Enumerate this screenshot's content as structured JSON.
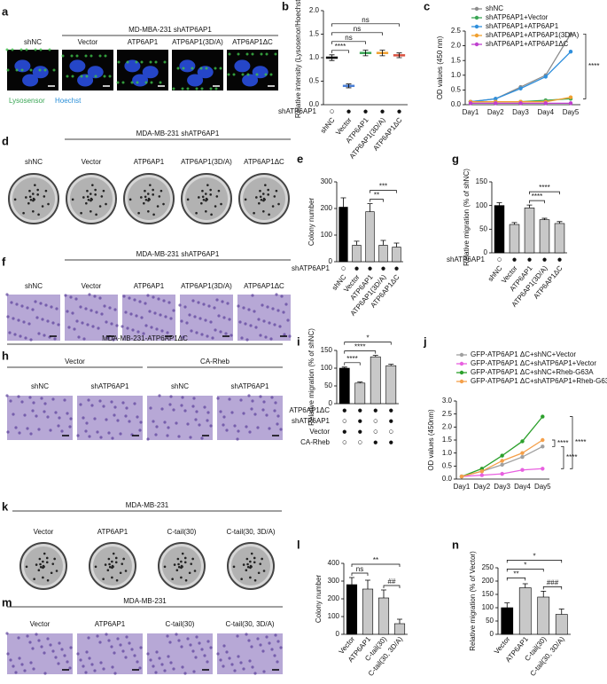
{
  "images": [
    {
      "panel": "a",
      "header": "MD-MBA-231 shATP6AP1",
      "labels": [
        "shNC",
        "Vector",
        "ATP6AP1",
        "ATP6AP1(3D/A)",
        "ATP6AP1ΔC"
      ],
      "legend": [
        "Lysosensor",
        "Hoechst"
      ]
    },
    {
      "panel": "d",
      "header": "MDA-MB-231 shATP6AP1",
      "labels": [
        "shNC",
        "Vector",
        "ATP6AP1",
        "ATP6AP1(3D/A)",
        "ATP6AP1ΔC"
      ]
    },
    {
      "panel": "f",
      "header": "MDA-MB-231 shATP6AP1",
      "labels": [
        "shNC",
        "Vector",
        "ATP6AP1",
        "ATP6AP1(3D/A)",
        "ATP6AP1ΔC"
      ]
    },
    {
      "panel": "h",
      "header": "MDA-MB-231-ATP6AP1ΔC",
      "groups": [
        "Vector",
        "CA-Rheb"
      ],
      "labels": [
        "shNC",
        "shATP6AP1",
        "shNC",
        "shATP6AP1"
      ]
    },
    {
      "panel": "k",
      "header": "MDA-MB-231",
      "labels": [
        "Vector",
        "ATP6AP1",
        "C-tail(30)",
        "C-tail(30, 3D/A)"
      ]
    },
    {
      "panel": "m",
      "header": "MDA-MB-231",
      "labels": [
        "Vector",
        "ATP6AP1",
        "C-tail(30)",
        "C-tail(30, 3D/A)"
      ]
    }
  ],
  "chart_data": [
    {
      "panel": "b",
      "type": "dot",
      "ylabel": "Relative intensity (Lysosenor/Hoechst)",
      "categories": [
        "shNC",
        "Vector",
        "ATP6AP1",
        "ATP6AP1(3D/A)",
        "ATP6AP1ΔC"
      ],
      "values": [
        1.0,
        0.4,
        1.1,
        1.1,
        1.05
      ],
      "errors": [
        0.06,
        0.04,
        0.06,
        0.06,
        0.05
      ],
      "colors": [
        "#000000",
        "#4a7fd6",
        "#3aa655",
        "#f0a030",
        "#d9503f"
      ],
      "ylim": [
        0,
        2
      ],
      "yticks": [
        {
          "value": 0,
          "label": "0.0"
        },
        0.5,
        {
          "value": 1,
          "label": "1.0"
        },
        1.5,
        {
          "value": 2,
          "label": "2.0"
        }
      ],
      "conditions": [
        {
          "label": "shATP6AP1",
          "marks": [
            "○",
            "●",
            "●",
            "●",
            "●"
          ]
        }
      ],
      "annotations": [
        {
          "text": "****",
          "from": 0,
          "to": 1
        },
        {
          "text": "ns",
          "from": 0,
          "to": 2
        },
        {
          "text": "ns",
          "from": 0,
          "to": 3
        },
        {
          "text": "ns",
          "from": 0,
          "to": 4
        }
      ]
    },
    {
      "panel": "c",
      "type": "line",
      "ylabel": "OD values (450 nm)",
      "categories": [
        "Day1",
        "Day2",
        "Day3",
        "Day4",
        "Day5"
      ],
      "series": [
        {
          "name": "shNC",
          "color": "#8c8c8c",
          "values": [
            0.1,
            0.2,
            0.6,
            1.0,
            2.4
          ]
        },
        {
          "name": "shATP6AP1+Vector",
          "color": "#3aa655",
          "values": [
            0.1,
            0.1,
            0.1,
            0.15,
            0.2
          ]
        },
        {
          "name": "shATP6AP1+ATP6AP1",
          "color": "#2f8fdc",
          "values": [
            0.1,
            0.2,
            0.55,
            0.95,
            1.8
          ]
        },
        {
          "name": "shATP6AP1+ATP6AP1(3D/A)",
          "color": "#f0a030",
          "values": [
            0.1,
            0.1,
            0.1,
            0.1,
            0.25
          ]
        },
        {
          "name": "shATP6AP1+ATP6AP1ΔC",
          "color": "#c040d0",
          "values": [
            0.05,
            0.05,
            0.05,
            0.05,
            0.05
          ]
        }
      ],
      "ylim": [
        0,
        2.5
      ],
      "yticks": [
        {
          "value": 0,
          "label": "0.0"
        },
        0.5,
        {
          "value": 1,
          "label": "1.0"
        },
        1.5,
        {
          "value": 2,
          "label": "2.0"
        },
        2.5
      ],
      "annotations": [
        {
          "text": "****",
          "from": 0,
          "to": 1
        }
      ]
    },
    {
      "panel": "e",
      "type": "bar",
      "ylabel": "Colony number",
      "values": [
        205,
        62,
        188,
        62,
        55
      ],
      "errors": [
        35,
        15,
        30,
        18,
        15
      ],
      "colors": [
        "#000000",
        "#c8c8c8",
        "#c8c8c8",
        "#c8c8c8",
        "#c8c8c8"
      ],
      "categories": [
        "shNC",
        "Vector",
        "ATP6AP1",
        "ATP6AP1(3D/A)",
        "ATP6AP1ΔC"
      ],
      "ylim": [
        0,
        300
      ],
      "yticks": [
        0,
        100,
        200,
        300
      ],
      "conditions": [
        {
          "label": "shATP6AP1",
          "marks": [
            "○",
            "●",
            "●",
            "●",
            "●"
          ]
        }
      ],
      "annotations": [
        {
          "text": "**",
          "from": 2,
          "to": 3
        },
        {
          "text": "***",
          "from": 2,
          "to": 4
        }
      ]
    },
    {
      "panel": "g",
      "type": "bar",
      "ylabel": "Relative migration (% of shNC)",
      "values": [
        100,
        60,
        95,
        70,
        62
      ],
      "errors": [
        6,
        4,
        6,
        3,
        4
      ],
      "colors": [
        "#000000",
        "#c8c8c8",
        "#c8c8c8",
        "#c8c8c8",
        "#c8c8c8"
      ],
      "categories": [
        "shNC",
        "Vector",
        "ATP6AP1",
        "ATP6AP1(3D/A)",
        "ATP6AP1ΔC"
      ],
      "ylim": [
        0,
        150
      ],
      "yticks": [
        0,
        50,
        100,
        150
      ],
      "conditions": [
        {
          "label": "shATP6AP1",
          "marks": [
            "○",
            "●",
            "●",
            "●",
            "●"
          ]
        }
      ],
      "annotations": [
        {
          "text": "****",
          "from": 2,
          "to": 3
        },
        {
          "text": "****",
          "from": 2,
          "to": 4
        }
      ]
    },
    {
      "panel": "i",
      "type": "bar",
      "ylabel": "Relative migration (% of shNC)",
      "values": [
        100,
        58,
        132,
        107
      ],
      "errors": [
        3,
        3,
        4,
        4
      ],
      "colors": [
        "#000000",
        "#c8c8c8",
        "#c8c8c8",
        "#c8c8c8"
      ],
      "ylim": [
        0,
        150
      ],
      "yticks": [
        0,
        50,
        100,
        150
      ],
      "conditions": [
        {
          "label": "ATP6AP1ΔC",
          "marks": [
            "●",
            "●",
            "●",
            "●"
          ]
        },
        {
          "label": "shATP6AP1",
          "marks": [
            "○",
            "●",
            "○",
            "●"
          ]
        },
        {
          "label": "Vector",
          "marks": [
            "●",
            "●",
            "○",
            "○"
          ]
        },
        {
          "label": "CA-Rheb",
          "marks": [
            "○",
            "○",
            "●",
            "●"
          ]
        }
      ],
      "annotations": [
        {
          "text": "****",
          "from": 0,
          "to": 1
        },
        {
          "text": "****",
          "from": 0,
          "to": 2
        },
        {
          "text": "*",
          "from": 0,
          "to": 3
        }
      ]
    },
    {
      "panel": "j",
      "type": "line",
      "ylabel": "OD values (450nm)",
      "categories": [
        "Day1",
        "Day2",
        "Day3",
        "Day4",
        "Day5"
      ],
      "series": [
        {
          "name": "GFP-ATP6AP1 ΔC+shNC+Vector",
          "color": "#a0a0a0",
          "values": [
            0.1,
            0.3,
            0.55,
            0.85,
            1.25
          ]
        },
        {
          "name": "GFP-ATP6AP1 ΔC+shATP6AP1+Vector",
          "color": "#e860e0",
          "values": [
            0.1,
            0.15,
            0.2,
            0.35,
            0.4
          ]
        },
        {
          "name": "GFP-ATP6AP1 ΔC+shNC+Rheb-G63A",
          "color": "#2ca02c",
          "values": [
            0.1,
            0.4,
            0.9,
            1.45,
            2.4
          ]
        },
        {
          "name": "GFP-ATP6AP1 ΔC+shATP6AP1+Rheb-G63A",
          "color": "#f5a04a",
          "values": [
            0.1,
            0.3,
            0.7,
            1.0,
            1.5
          ]
        }
      ],
      "ylim": [
        0,
        3
      ],
      "yticks": [
        {
          "value": 0,
          "label": "0.0"
        },
        0.5,
        {
          "value": 1,
          "label": "1.0"
        },
        1.5,
        {
          "value": 2,
          "label": "2.0"
        },
        2.5,
        {
          "value": 3,
          "label": "3.0"
        }
      ],
      "annotations": [
        {
          "text": "****",
          "from": 3,
          "to": 0
        },
        {
          "text": "****",
          "from": 0,
          "to": 1
        },
        {
          "text": "****",
          "from": 2,
          "to": 1
        }
      ]
    },
    {
      "panel": "l",
      "type": "bar",
      "ylabel": "Colony number",
      "categories": [
        "Vector",
        "ATP6AP1",
        "C-tail(30)",
        "C-tail(30, 3D/A)"
      ],
      "values": [
        280,
        255,
        205,
        60
      ],
      "errors": [
        40,
        50,
        45,
        25
      ],
      "colors": [
        "#000000",
        "#c8c8c8",
        "#c8c8c8",
        "#c8c8c8"
      ],
      "ylim": [
        0,
        400
      ],
      "yticks": [
        0,
        100,
        200,
        300,
        400
      ],
      "annotations": [
        {
          "text": "##",
          "from": 2,
          "to": 3
        },
        {
          "text": "ns",
          "from": 0,
          "to": 1
        },
        {
          "text": "**",
          "from": 0,
          "to": 3
        }
      ]
    },
    {
      "panel": "n",
      "type": "bar",
      "ylabel": "Relative migration (% of Vector)",
      "categories": [
        "Vector",
        "ATP6AP1",
        "C-tail(30)",
        "C-tail(30, 3D/A)"
      ],
      "values": [
        100,
        175,
        140,
        75
      ],
      "errors": [
        18,
        15,
        22,
        20
      ],
      "colors": [
        "#000000",
        "#c8c8c8",
        "#c8c8c8",
        "#c8c8c8"
      ],
      "ylim": [
        0,
        250
      ],
      "yticks": [
        0,
        50,
        100,
        150,
        200,
        250
      ],
      "annotations": [
        {
          "text": "###",
          "from": 2,
          "to": 3
        },
        {
          "text": "**",
          "from": 0,
          "to": 1
        },
        {
          "text": "*",
          "from": 0,
          "to": 2
        },
        {
          "text": "*",
          "from": 0,
          "to": 3
        }
      ]
    }
  ]
}
